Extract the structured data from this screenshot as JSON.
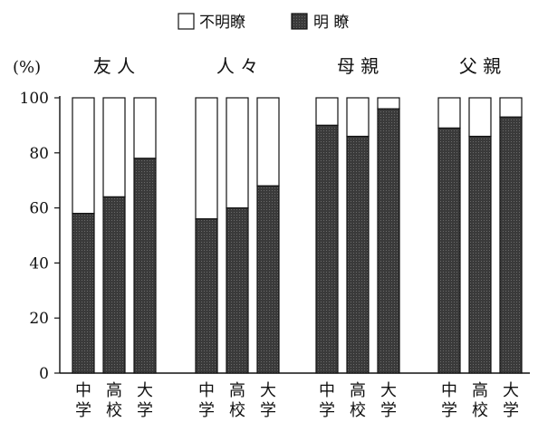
{
  "chart_data": {
    "type": "bar",
    "stacked": true,
    "ylabel": "(%)",
    "ylim": [
      0,
      100
    ],
    "yticks": [
      0,
      20,
      40,
      60,
      80,
      100
    ],
    "legend": {
      "placement": "top-center",
      "items": [
        {
          "label": "不明瞭",
          "color": "#ffffff"
        },
        {
          "label": "明 瞭",
          "color": "#3a3a3a"
        }
      ]
    },
    "groups": [
      {
        "title": "友 人",
        "categories": [
          "中学",
          "高校",
          "大学"
        ],
        "clear": [
          58,
          64,
          78
        ],
        "unclear": [
          42,
          36,
          22
        ]
      },
      {
        "title": "人 々",
        "categories": [
          "中学",
          "高校",
          "大学"
        ],
        "clear": [
          56,
          60,
          68
        ],
        "unclear": [
          44,
          40,
          32
        ]
      },
      {
        "title": "母 親",
        "categories": [
          "中学",
          "高校",
          "大学"
        ],
        "clear": [
          90,
          86,
          96
        ],
        "unclear": [
          10,
          14,
          4
        ]
      },
      {
        "title": "父 親",
        "categories": [
          "中学",
          "高校",
          "大学"
        ],
        "clear": [
          89,
          86,
          93
        ],
        "unclear": [
          11,
          14,
          7
        ]
      }
    ],
    "grid": false
  }
}
